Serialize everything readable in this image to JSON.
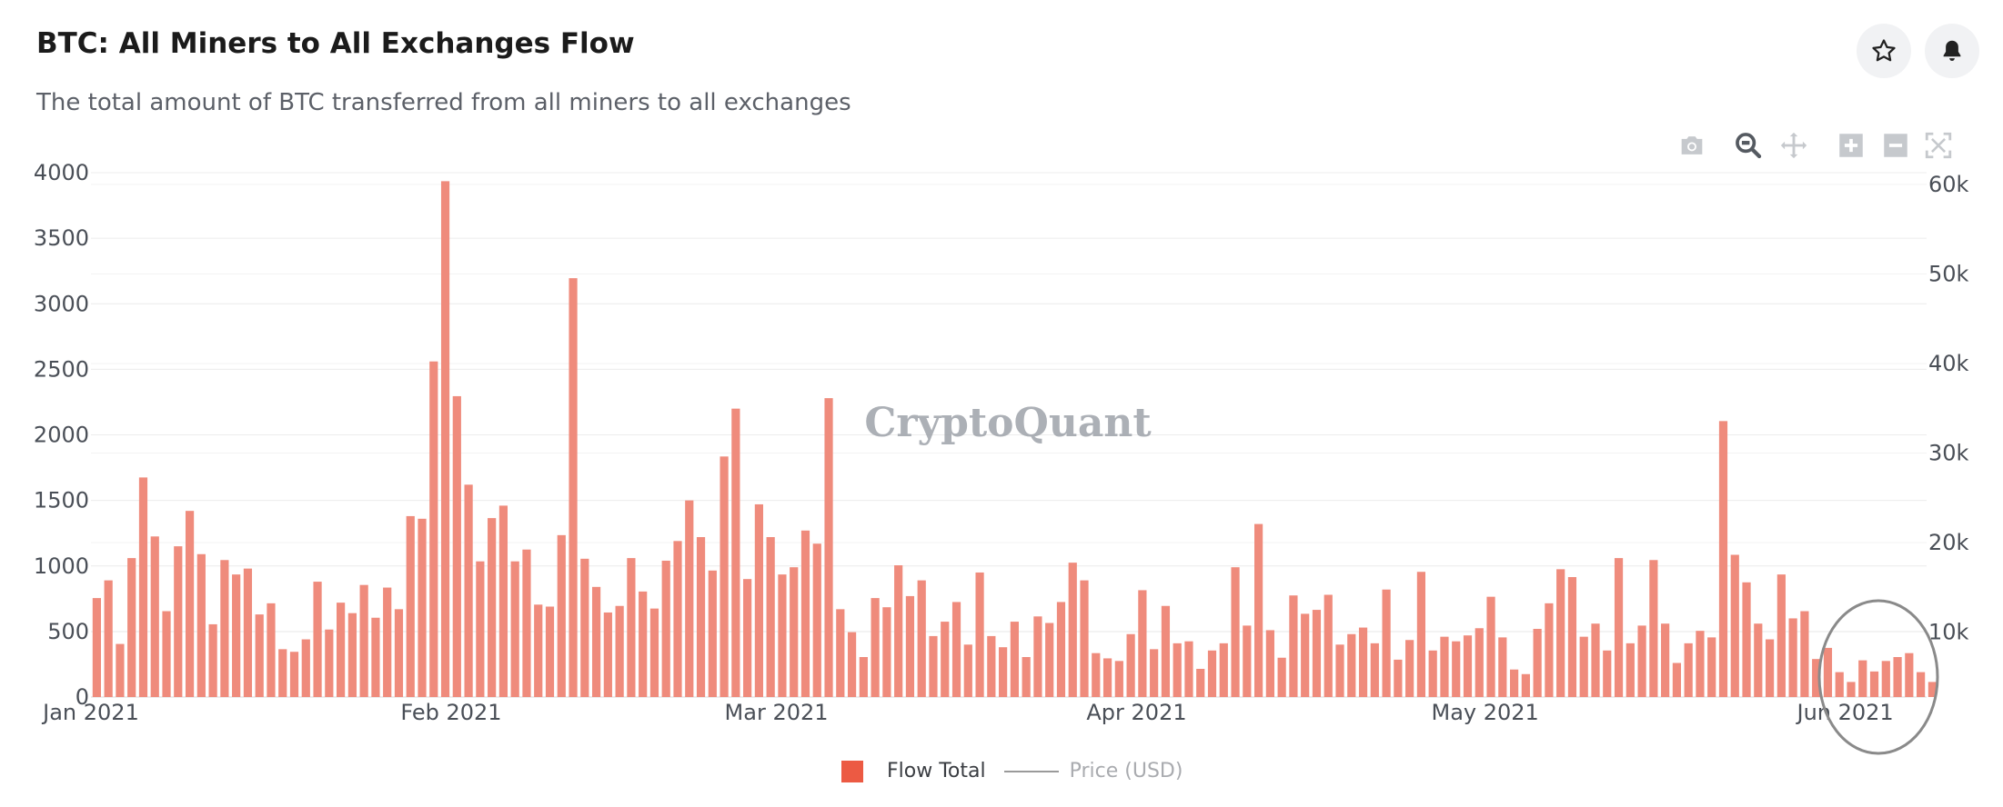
{
  "header": {
    "title": "BTC: All Miners to All Exchanges Flow",
    "subtitle": "The total amount of BTC transferred from all miners to all exchanges"
  },
  "actions": {
    "star_icon": "star-icon",
    "bell_icon": "bell-icon"
  },
  "modebar": [
    "camera-icon",
    "zoom-icon",
    "pan-icon",
    "zoom-in-icon",
    "zoom-out-icon",
    "autoscale-icon"
  ],
  "watermark": "CryptoQuant",
  "colors": {
    "bar": "#ef8b7c",
    "legend_bar": "#ec5a43",
    "price_line": "#9a9a9a",
    "circle": "#8a8a8a"
  },
  "legend": {
    "flow": "Flow Total",
    "price": "Price (USD)"
  },
  "chart_data": {
    "type": "bar",
    "x_start": "2021-01-01",
    "x_end": "2021-06-08",
    "series": [
      {
        "name": "Flow Total",
        "values": [
          755,
          890,
          405,
          1060,
          1675,
          1225,
          655,
          1150,
          1420,
          1090,
          555,
          1045,
          935,
          980,
          630,
          715,
          365,
          345,
          440,
          880,
          515,
          720,
          640,
          855,
          605,
          835,
          670,
          1380,
          1360,
          2560,
          3935,
          2295,
          1620,
          1035,
          1365,
          1460,
          1035,
          1125,
          705,
          690,
          1235,
          3195,
          1055,
          840,
          645,
          695,
          1060,
          805,
          675,
          1040,
          1190,
          1500,
          1220,
          965,
          1835,
          2200,
          900,
          1470,
          1220,
          935,
          990,
          1270,
          1170,
          2280,
          670,
          495,
          305,
          755,
          685,
          1005,
          770,
          890,
          465,
          575,
          725,
          400,
          950,
          465,
          380,
          575,
          305,
          615,
          565,
          725,
          1025,
          890,
          335,
          295,
          275,
          480,
          815,
          365,
          695,
          410,
          425,
          215,
          355,
          410,
          990,
          545,
          1320,
          510,
          300,
          775,
          635,
          665,
          780,
          400,
          480,
          530,
          410,
          820,
          285,
          435,
          955,
          355,
          460,
          425,
          470,
          525,
          765,
          455,
          210,
          175,
          520,
          715,
          975,
          915,
          460,
          560,
          355,
          1060,
          410,
          545,
          1045,
          560,
          260,
          410,
          505,
          455,
          2105,
          1085,
          875,
          560,
          440,
          935,
          600,
          655,
          290,
          375,
          190,
          115,
          280,
          195,
          275,
          305,
          335,
          190,
          115
        ],
        "color": "#ef8b7c"
      },
      {
        "name": "Price (USD)"
      }
    ],
    "x_ticks": [
      "Jan 2021",
      "Feb 2021",
      "Mar 2021",
      "Apr 2021",
      "May 2021",
      "Jun 2021"
    ],
    "y_left": {
      "ticks": [
        0,
        500,
        1000,
        1500,
        2000,
        2500,
        3000,
        3500,
        4000
      ],
      "ylim": [
        0,
        4000
      ]
    },
    "y_right": {
      "ticks": [
        "10k",
        "20k",
        "30k",
        "40k",
        "50k",
        "60k"
      ]
    },
    "grid": true,
    "legend_position": "bottom-center",
    "annotation": "circle-around-june-bars"
  }
}
